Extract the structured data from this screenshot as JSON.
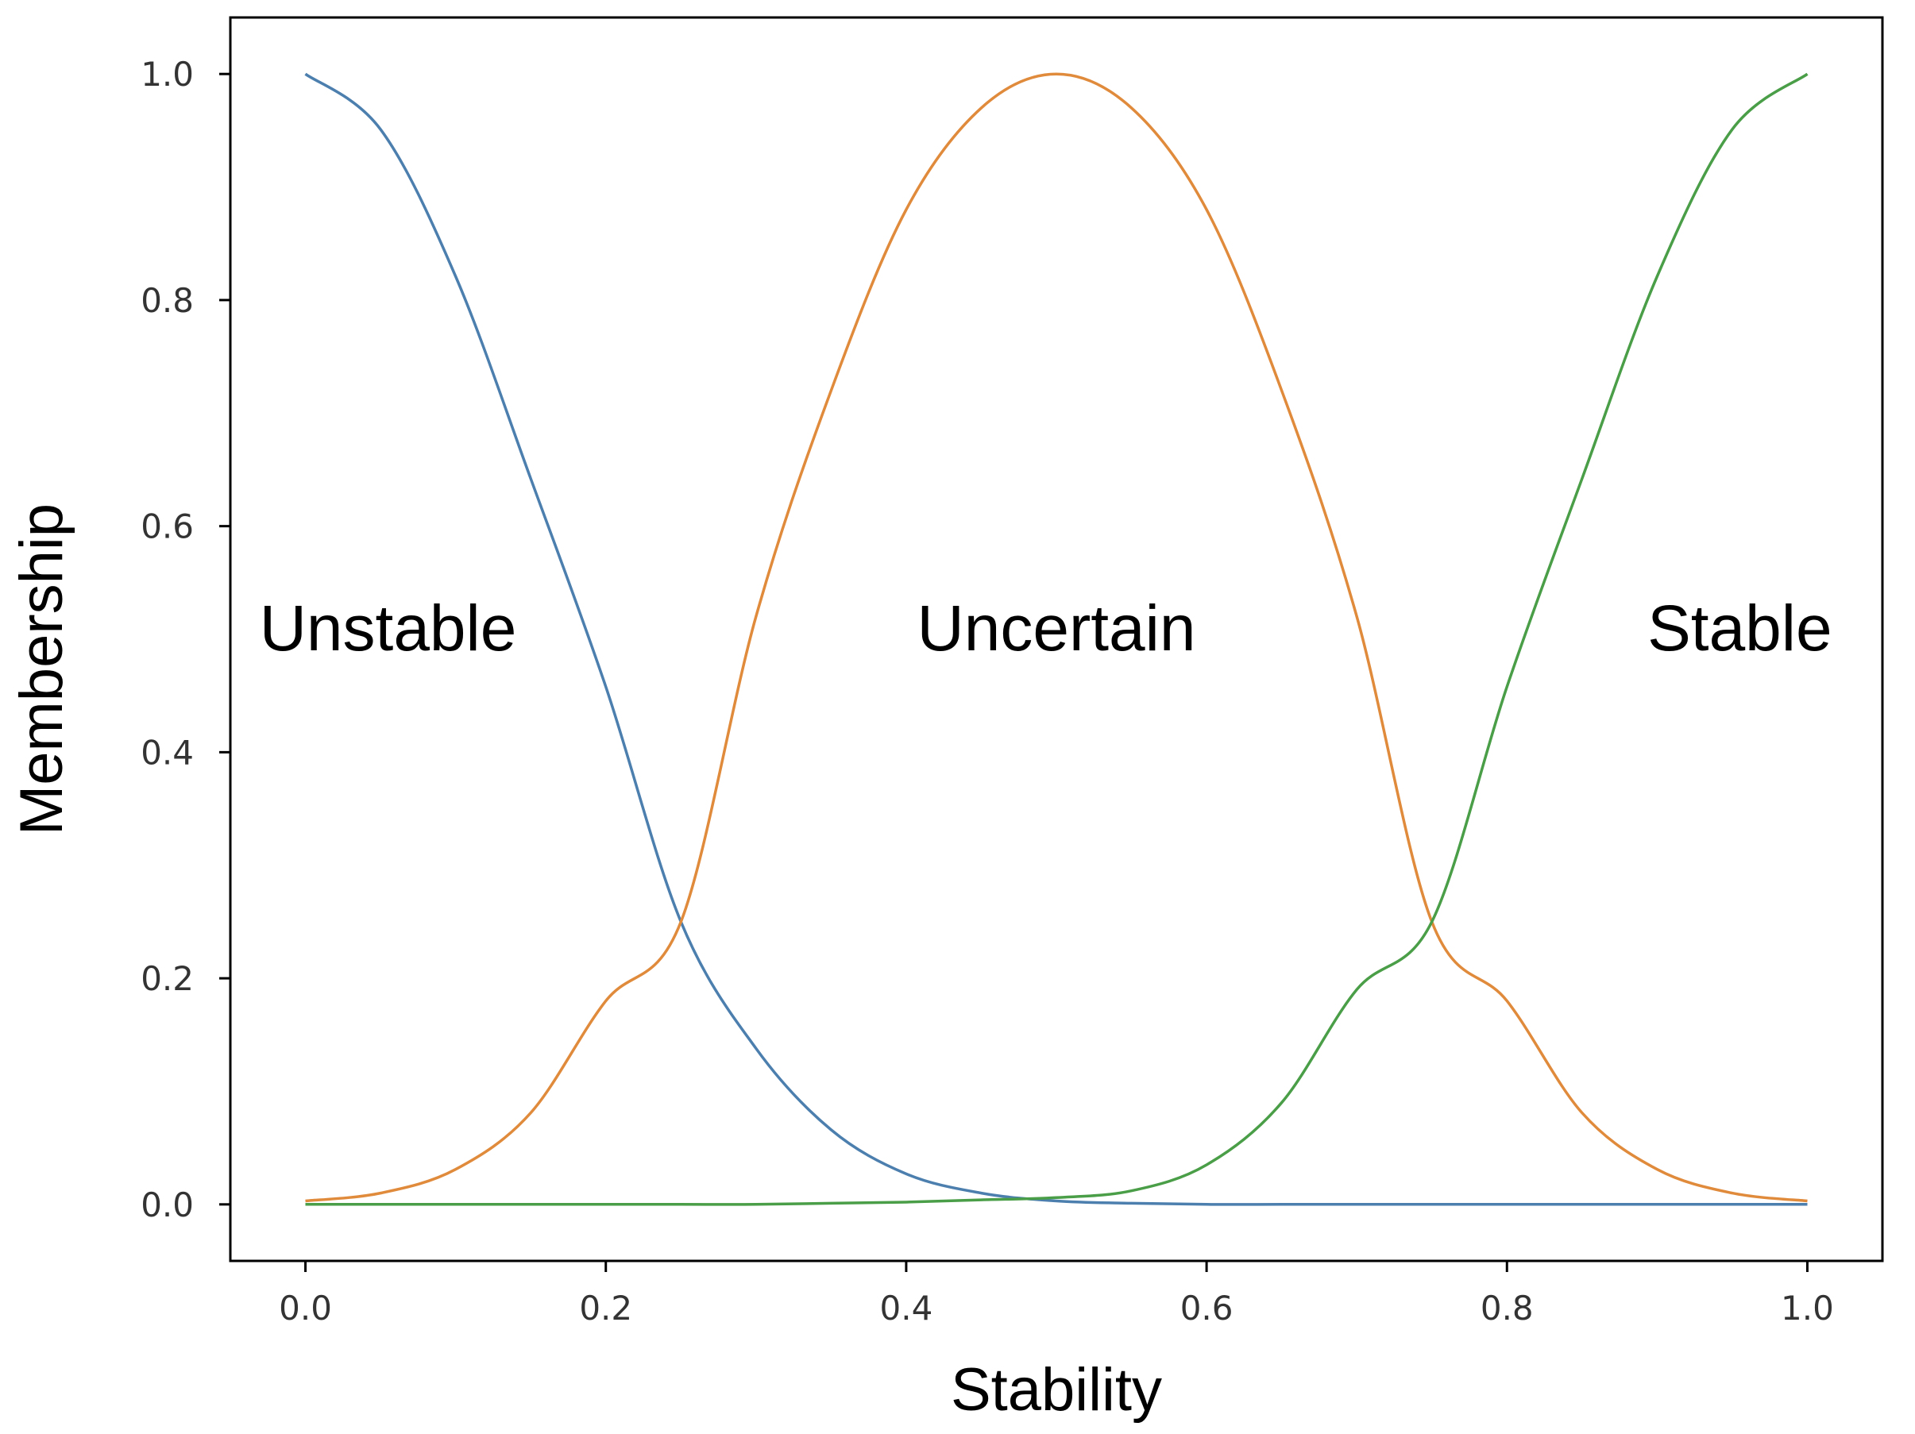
{
  "chart_data": {
    "type": "line",
    "title": "",
    "xlabel": "Stability",
    "ylabel": "Membership",
    "xlim": [
      -0.05,
      1.05
    ],
    "ylim": [
      -0.05,
      1.05
    ],
    "x_ticks": [
      0.0,
      0.2,
      0.4,
      0.6,
      0.8,
      1.0
    ],
    "x_tick_labels": [
      "0.0",
      "0.2",
      "0.4",
      "0.6",
      "0.8",
      "1.0"
    ],
    "y_ticks": [
      0.0,
      0.2,
      0.4,
      0.6,
      0.8,
      1.0
    ],
    "y_tick_labels": [
      "0.0",
      "0.2",
      "0.4",
      "0.6",
      "0.8",
      "1.0"
    ],
    "grid": false,
    "legend": "none",
    "x": [
      0.0,
      0.05,
      0.1,
      0.15,
      0.2,
      0.25,
      0.3,
      0.35,
      0.4,
      0.45,
      0.5,
      0.55,
      0.6,
      0.65,
      0.7,
      0.75,
      0.8,
      0.85,
      0.9,
      0.95,
      1.0
    ],
    "series": [
      {
        "color": "#4c7fae",
        "values": [
          1.0,
          0.951,
          0.821,
          0.642,
          0.458,
          0.25,
          0.138,
          0.066,
          0.027,
          0.01,
          0.003,
          0.001,
          0.0,
          0.0,
          0.0,
          0.0,
          0.0,
          0.0,
          0.0,
          0.0,
          0.0
        ]
      },
      {
        "color": "#e08a3c",
        "values": [
          0.003,
          0.01,
          0.031,
          0.081,
          0.18,
          0.25,
          0.52,
          0.72,
          0.88,
          0.97,
          1.0,
          0.97,
          0.88,
          0.72,
          0.52,
          0.25,
          0.18,
          0.081,
          0.031,
          0.01,
          0.003
        ]
      },
      {
        "color": "#4a9e47",
        "values": [
          0.0,
          0.0,
          0.0,
          0.0,
          0.0,
          0.0,
          0.0,
          0.001,
          0.002,
          0.004,
          0.006,
          0.012,
          0.035,
          0.09,
          0.19,
          0.25,
          0.458,
          0.642,
          0.821,
          0.951,
          1.0
        ]
      }
    ],
    "annotations": [
      {
        "text": "Unstable",
        "x": 0.055,
        "y": 0.51
      },
      {
        "text": "Uncertain",
        "x": 0.5,
        "y": 0.51
      },
      {
        "text": "Stable",
        "x": 0.955,
        "y": 0.51
      }
    ]
  }
}
